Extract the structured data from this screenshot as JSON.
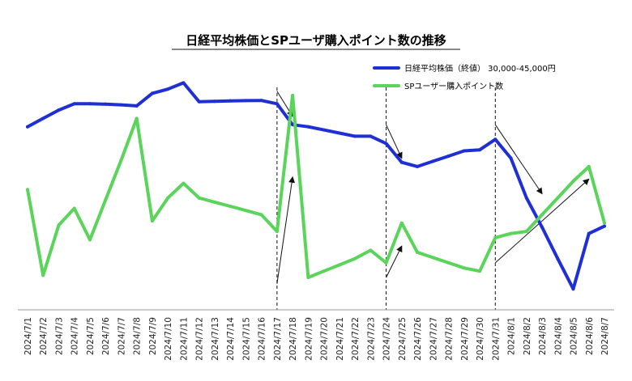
{
  "chart_data": {
    "type": "line",
    "title": "日経平均株価とSPユーザ購入ポイント数の推移",
    "categories": [
      "2024/7/1",
      "2024/7/2",
      "2024/7/3",
      "2024/7/4",
      "2024/7/5",
      "2024/7/6",
      "2024/7/7",
      "2024/7/8",
      "2024/7/9",
      "2024/7/10",
      "2024/7/11",
      "2024/7/12",
      "2024/7/13",
      "2024/7/14",
      "2024/7/15",
      "2024/7/16",
      "2024/7/17",
      "2024/7/18",
      "2024/7/19",
      "2024/7/20",
      "2024/7/21",
      "2024/7/22",
      "2024/7/23",
      "2024/7/24",
      "2024/7/25",
      "2024/7/26",
      "2024/7/27",
      "2024/7/28",
      "2024/7/29",
      "2024/7/30",
      "2024/7/31",
      "2024/8/1",
      "2024/8/2",
      "2024/8/3",
      "2024/8/4",
      "2024/8/5",
      "2024/8/6",
      "2024/8/7"
    ],
    "series": [
      {
        "name": "日経平均株価（終値） 30,000-45,000円",
        "color": "#1f2fd6",
        "values": [
          40100,
          40500,
          40900,
          41200,
          41200,
          41180,
          41150,
          41100,
          41700,
          41900,
          42200,
          41300,
          41320,
          41340,
          41350,
          41360,
          41200,
          40200,
          40100,
          39950,
          39800,
          39650,
          39650,
          39300,
          38400,
          38200,
          38450,
          38700,
          38950,
          39000,
          39500,
          38600,
          36700,
          35300,
          33800,
          32350,
          35000,
          35350
        ]
      },
      {
        "name": "SPユーザー購入ポイント数",
        "color": "#5ad45a",
        "values": [
          37100,
          33000,
          35400,
          36200,
          34700,
          36600,
          38500,
          40500,
          35600,
          36700,
          37400,
          36700,
          36500,
          36300,
          36100,
          35900,
          35100,
          41600,
          32900,
          33200,
          33500,
          33800,
          34200,
          33600,
          35500,
          34100,
          33850,
          33600,
          33350,
          33200,
          34800,
          35000,
          35100,
          35900,
          36700,
          37500,
          38200,
          35500
        ]
      }
    ],
    "ylim": [
      30000,
      45000
    ],
    "grid": false,
    "legend_position": "top-right",
    "divider_dates": [
      "2024/7/17",
      "2024/7/24",
      "2024/7/31"
    ],
    "annotation_arrows": [
      {
        "from": [
          "2024/7/17",
          41800
        ],
        "to": [
          "2024/7/18",
          40600
        ]
      },
      {
        "from": [
          "2024/7/17",
          32600
        ],
        "to": [
          "2024/7/18",
          37700
        ]
      },
      {
        "from": [
          "2024/7/24",
          40200
        ],
        "to": [
          "2024/7/25",
          38600
        ]
      },
      {
        "from": [
          "2024/7/24",
          32900
        ],
        "to": [
          "2024/7/25",
          34400
        ]
      },
      {
        "from": [
          "2024/7/31",
          40200
        ],
        "to": [
          "2024/8/3",
          36900
        ]
      },
      {
        "from": [
          "2024/7/31",
          33600
        ],
        "to": [
          "2024/8/6",
          37600
        ]
      }
    ]
  }
}
